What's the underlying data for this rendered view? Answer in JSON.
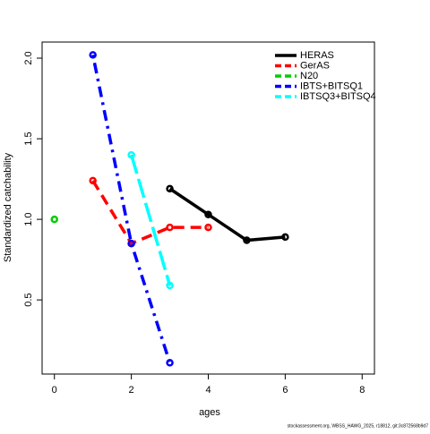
{
  "chart_data": {
    "type": "line",
    "ylabel": "Standardized catchability",
    "xlabel": "ages",
    "footer": "stockassessment.org, WBSS_HAWG_2025, r18812, git:3c872568b9d7",
    "xlim": [
      -0.32,
      8.32
    ],
    "xticks": [
      0,
      2,
      4,
      6,
      8
    ],
    "ylim": [
      0.04,
      2.1
    ],
    "yticks": [
      0.5,
      {
        "value": 1,
        "label": "1.0"
      },
      1.5,
      {
        "value": 2,
        "label": "2.0"
      }
    ],
    "legend": "topright",
    "series": [
      {
        "name": "HERAS",
        "color": "#000000",
        "dash": "solid",
        "x": [
          3,
          4,
          5,
          6
        ],
        "values": [
          1.19,
          1.03,
          0.87,
          0.89
        ]
      },
      {
        "name": "GerAS",
        "color": "#ff0000",
        "dash": "dashed",
        "x": [
          1,
          2,
          3,
          4
        ],
        "values": [
          1.24,
          0.85,
          0.95,
          0.95
        ]
      },
      {
        "name": "N20",
        "color": "#00cd00",
        "dash": "dashed",
        "x": [
          0
        ],
        "values": [
          1.0
        ]
      },
      {
        "name": "IBTS+BITSQ1",
        "color": "#0000ff",
        "dash": "dotdash",
        "x": [
          1,
          2,
          3
        ],
        "values": [
          2.02,
          0.85,
          0.11
        ]
      },
      {
        "name": "IBTSQ3+BITSQ4",
        "color": "#00ffff",
        "dash": "longdash",
        "x": [
          2,
          3
        ],
        "values": [
          1.4,
          0.59
        ]
      }
    ]
  }
}
